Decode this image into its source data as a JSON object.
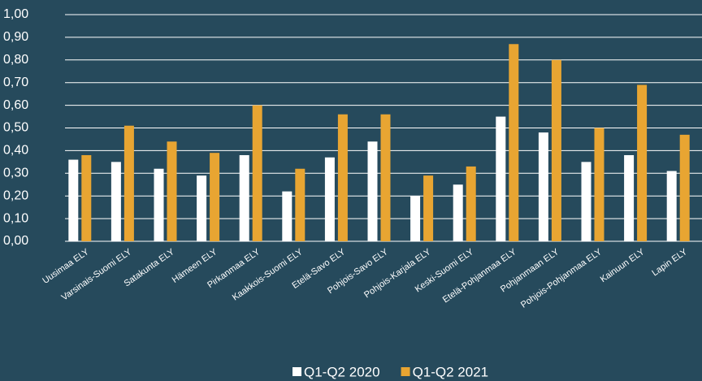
{
  "chart_data": {
    "type": "bar",
    "categories": [
      "Uusimaa ELY",
      "Varsinais-Suomi ELY",
      "Satakunta ELY",
      "Hämeen ELY",
      "Pirkanmaa ELY",
      "Kaakkois-Suomi ELY",
      "Etelä-Savo ELY",
      "Pohjois-Savo ELY",
      "Pohjois-Karjala ELY",
      "Keski-Suomi ELY",
      "Etelä-Pohjanmaa ELY",
      "Pohjanmaan ELY",
      "Pohjois-Pohjanmaa ELY",
      "Kainuun ELY",
      "Lapin ELY"
    ],
    "series": [
      {
        "name": "Q1-Q2 2020",
        "color": "#ffffff",
        "values": [
          0.36,
          0.35,
          0.32,
          0.29,
          0.38,
          0.22,
          0.37,
          0.44,
          0.2,
          0.25,
          0.55,
          0.48,
          0.35,
          0.38,
          0.31
        ]
      },
      {
        "name": "Q1-Q2 2021",
        "color": "#e8a532",
        "values": [
          0.38,
          0.51,
          0.44,
          0.39,
          0.6,
          0.32,
          0.56,
          0.56,
          0.29,
          0.33,
          0.87,
          0.8,
          0.5,
          0.69,
          0.47
        ]
      }
    ],
    "ylim": [
      0,
      1
    ],
    "yticks": [
      {
        "value": 0,
        "label": "0,00"
      },
      {
        "value": 0.1,
        "label": "0,10"
      },
      {
        "value": 0.2,
        "label": "0,20"
      },
      {
        "value": 0.3,
        "label": "0,30"
      },
      {
        "value": 0.4,
        "label": "0,40"
      },
      {
        "value": 0.5,
        "label": "0,50"
      },
      {
        "value": 0.6,
        "label": "0,60"
      },
      {
        "value": 0.7,
        "label": "0,70"
      },
      {
        "value": 0.8,
        "label": "0,80"
      },
      {
        "value": 0.9,
        "label": "0,90"
      },
      {
        "value": 1,
        "label": "1,00"
      }
    ],
    "grid": true
  }
}
